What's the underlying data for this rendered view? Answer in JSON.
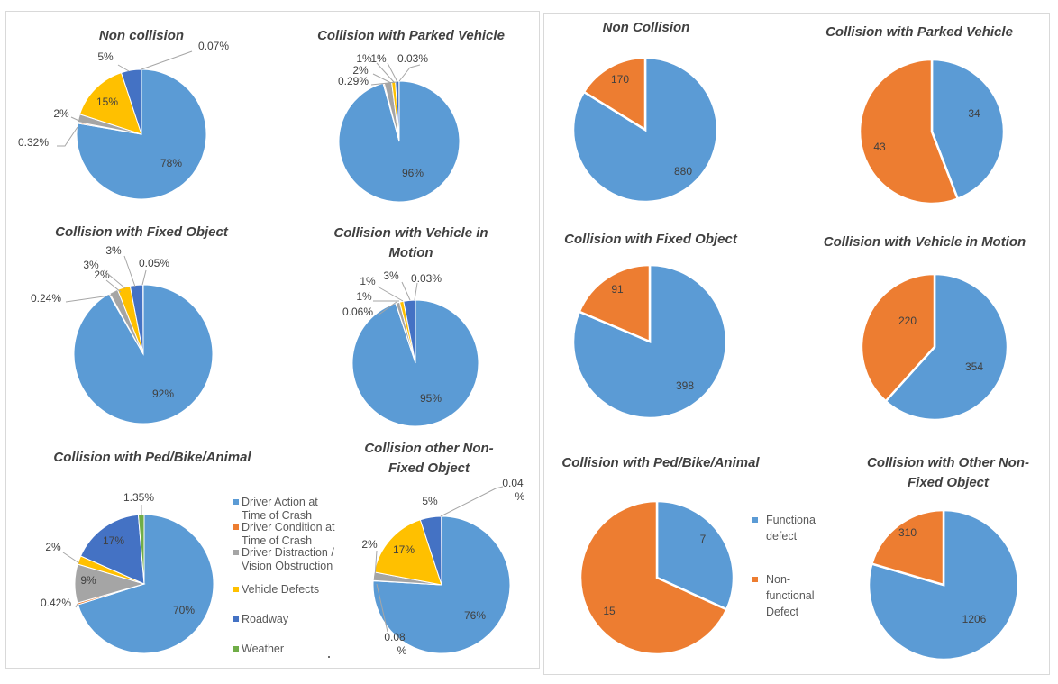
{
  "colors": {
    "Driver Action at Time of Crash": "#5b9bd5",
    "Driver Condition at Time of Crash": "#ed7d31",
    "Driver Distraction / Vision Obstruction": "#a5a5a5",
    "Vehicle Defects": "#ffc000",
    "Roadway": "#4472c4",
    "Weather": "#70ad47",
    "Functional defect": "#5b9bd5",
    "Non-functional Defect": "#ed7d31"
  },
  "left_legend": {
    "items": [
      {
        "lines": [
          "Driver Action at",
          "Time of Crash"
        ],
        "series": "Driver Action at Time of Crash"
      },
      {
        "lines": [
          "Driver Condition at",
          "Time of Crash"
        ],
        "series": "Driver Condition at Time of Crash"
      },
      {
        "lines": [
          "Driver Distraction /",
          "Vision Obstruction"
        ],
        "series": "Driver Distraction / Vision Obstruction"
      },
      {
        "lines": [
          "Vehicle Defects"
        ],
        "series": "Vehicle Defects"
      },
      {
        "lines": [
          "Roadway"
        ],
        "series": "Roadway"
      },
      {
        "lines": [
          "Weather"
        ],
        "series": "Weather"
      }
    ]
  },
  "right_legend": {
    "items": [
      {
        "lines": [
          "Functiona",
          "defect"
        ],
        "series": "Functional defect"
      },
      {
        "lines": [
          "Non-",
          "functional",
          "Defect"
        ],
        "series": "Non-functional Defect"
      }
    ]
  },
  "chart_data": [
    {
      "type": "pie",
      "title_lines": [
        "Non collision"
      ],
      "categories": [
        "Driver Action at Time of Crash",
        "Driver Condition at Time of Crash",
        "Driver Distraction / Vision Obstruction",
        "Vehicle Defects",
        "Roadway",
        "Weather"
      ],
      "values": [
        78,
        0.32,
        2,
        15,
        5,
        0.07
      ],
      "labels": [
        "78%",
        "0.32%",
        "2%",
        "15%",
        "5%",
        "0.07%"
      ]
    },
    {
      "type": "pie",
      "title_lines": [
        "Collision with Parked Vehicle"
      ],
      "categories": [
        "Driver Action at Time of Crash",
        "Driver Condition at Time of Crash",
        "Driver Distraction / Vision Obstruction",
        "Vehicle Defects",
        "Roadway",
        "Weather"
      ],
      "values": [
        96,
        0.29,
        2,
        1,
        1,
        0.03
      ],
      "labels": [
        "96%",
        "0.29%",
        "2%",
        "1%",
        "1%",
        "0.03%"
      ]
    },
    {
      "type": "pie",
      "title_lines": [
        "Collision with Fixed Object"
      ],
      "categories": [
        "Driver Action at Time of Crash",
        "Driver Condition at Time of Crash",
        "Driver Distraction / Vision Obstruction",
        "Vehicle Defects",
        "Roadway",
        "Weather"
      ],
      "values": [
        92,
        0.24,
        2,
        3,
        3,
        0.05
      ],
      "labels": [
        "92%",
        "0.24%",
        "2%",
        "3%",
        "3%",
        "0.05%"
      ]
    },
    {
      "type": "pie",
      "title_lines": [
        "Collision with Vehicle in",
        "Motion"
      ],
      "categories": [
        "Driver Action at Time of Crash",
        "Driver Condition at Time of Crash",
        "Driver Distraction / Vision Obstruction",
        "Vehicle Defects",
        "Roadway",
        "Weather"
      ],
      "values": [
        95,
        0.06,
        1,
        1,
        3,
        0.03
      ],
      "labels": [
        "95%",
        "0.06%",
        "1%",
        "1%",
        "3%",
        "0.03%"
      ]
    },
    {
      "type": "pie",
      "title_lines": [
        "Collision with Ped/Bike/Animal"
      ],
      "categories": [
        "Driver Action at Time of Crash",
        "Driver Condition at Time of Crash",
        "Driver Distraction / Vision Obstruction",
        "Vehicle Defects",
        "Roadway",
        "Weather"
      ],
      "values": [
        70,
        0.42,
        9,
        2,
        17,
        1.35
      ],
      "labels": [
        "70%",
        "0.42%",
        "9%",
        "2%",
        "17%",
        "1.35%"
      ]
    },
    {
      "type": "pie",
      "title_lines": [
        "Collision other Non-",
        "Fixed Object"
      ],
      "categories": [
        "Driver Action at Time of Crash",
        "Driver Condition at Time of Crash",
        "Driver Distraction / Vision Obstruction",
        "Vehicle Defects",
        "Roadway",
        "Weather"
      ],
      "values": [
        76,
        0.08,
        2,
        17,
        5,
        0.04
      ],
      "labels": [
        "76%",
        "0.08 %",
        "2%",
        "17%",
        "5%",
        "0.04 %"
      ]
    },
    {
      "type": "pie",
      "title_lines": [
        "Non Collision"
      ],
      "categories": [
        "Functional defect",
        "Non-functional Defect"
      ],
      "values": [
        880,
        170
      ],
      "labels": [
        "880",
        "170"
      ]
    },
    {
      "type": "pie",
      "title_lines": [
        "Collision with Parked Vehicle"
      ],
      "categories": [
        "Functional defect",
        "Non-functional Defect"
      ],
      "values": [
        34,
        43
      ],
      "labels": [
        "34",
        "43"
      ]
    },
    {
      "type": "pie",
      "title_lines": [
        "Collision with Fixed Object"
      ],
      "categories": [
        "Functional defect",
        "Non-functional Defect"
      ],
      "values": [
        398,
        91
      ],
      "labels": [
        "398",
        "91"
      ]
    },
    {
      "type": "pie",
      "title_lines": [
        "Collision with Vehicle in Motion"
      ],
      "categories": [
        "Functional defect",
        "Non-functional Defect"
      ],
      "values": [
        354,
        220
      ],
      "labels": [
        "354",
        "220"
      ]
    },
    {
      "type": "pie",
      "title_lines": [
        "Collision with Ped/Bike/Animal"
      ],
      "categories": [
        "Functional defect",
        "Non-functional Defect"
      ],
      "values": [
        7,
        15
      ],
      "labels": [
        "7",
        "15"
      ]
    },
    {
      "type": "pie",
      "title_lines": [
        "Collision with Other Non-",
        "Fixed Object"
      ],
      "categories": [
        "Functional defect",
        "Non-functional Defect"
      ],
      "values": [
        1206,
        310
      ],
      "labels": [
        "1206",
        "310"
      ]
    }
  ]
}
